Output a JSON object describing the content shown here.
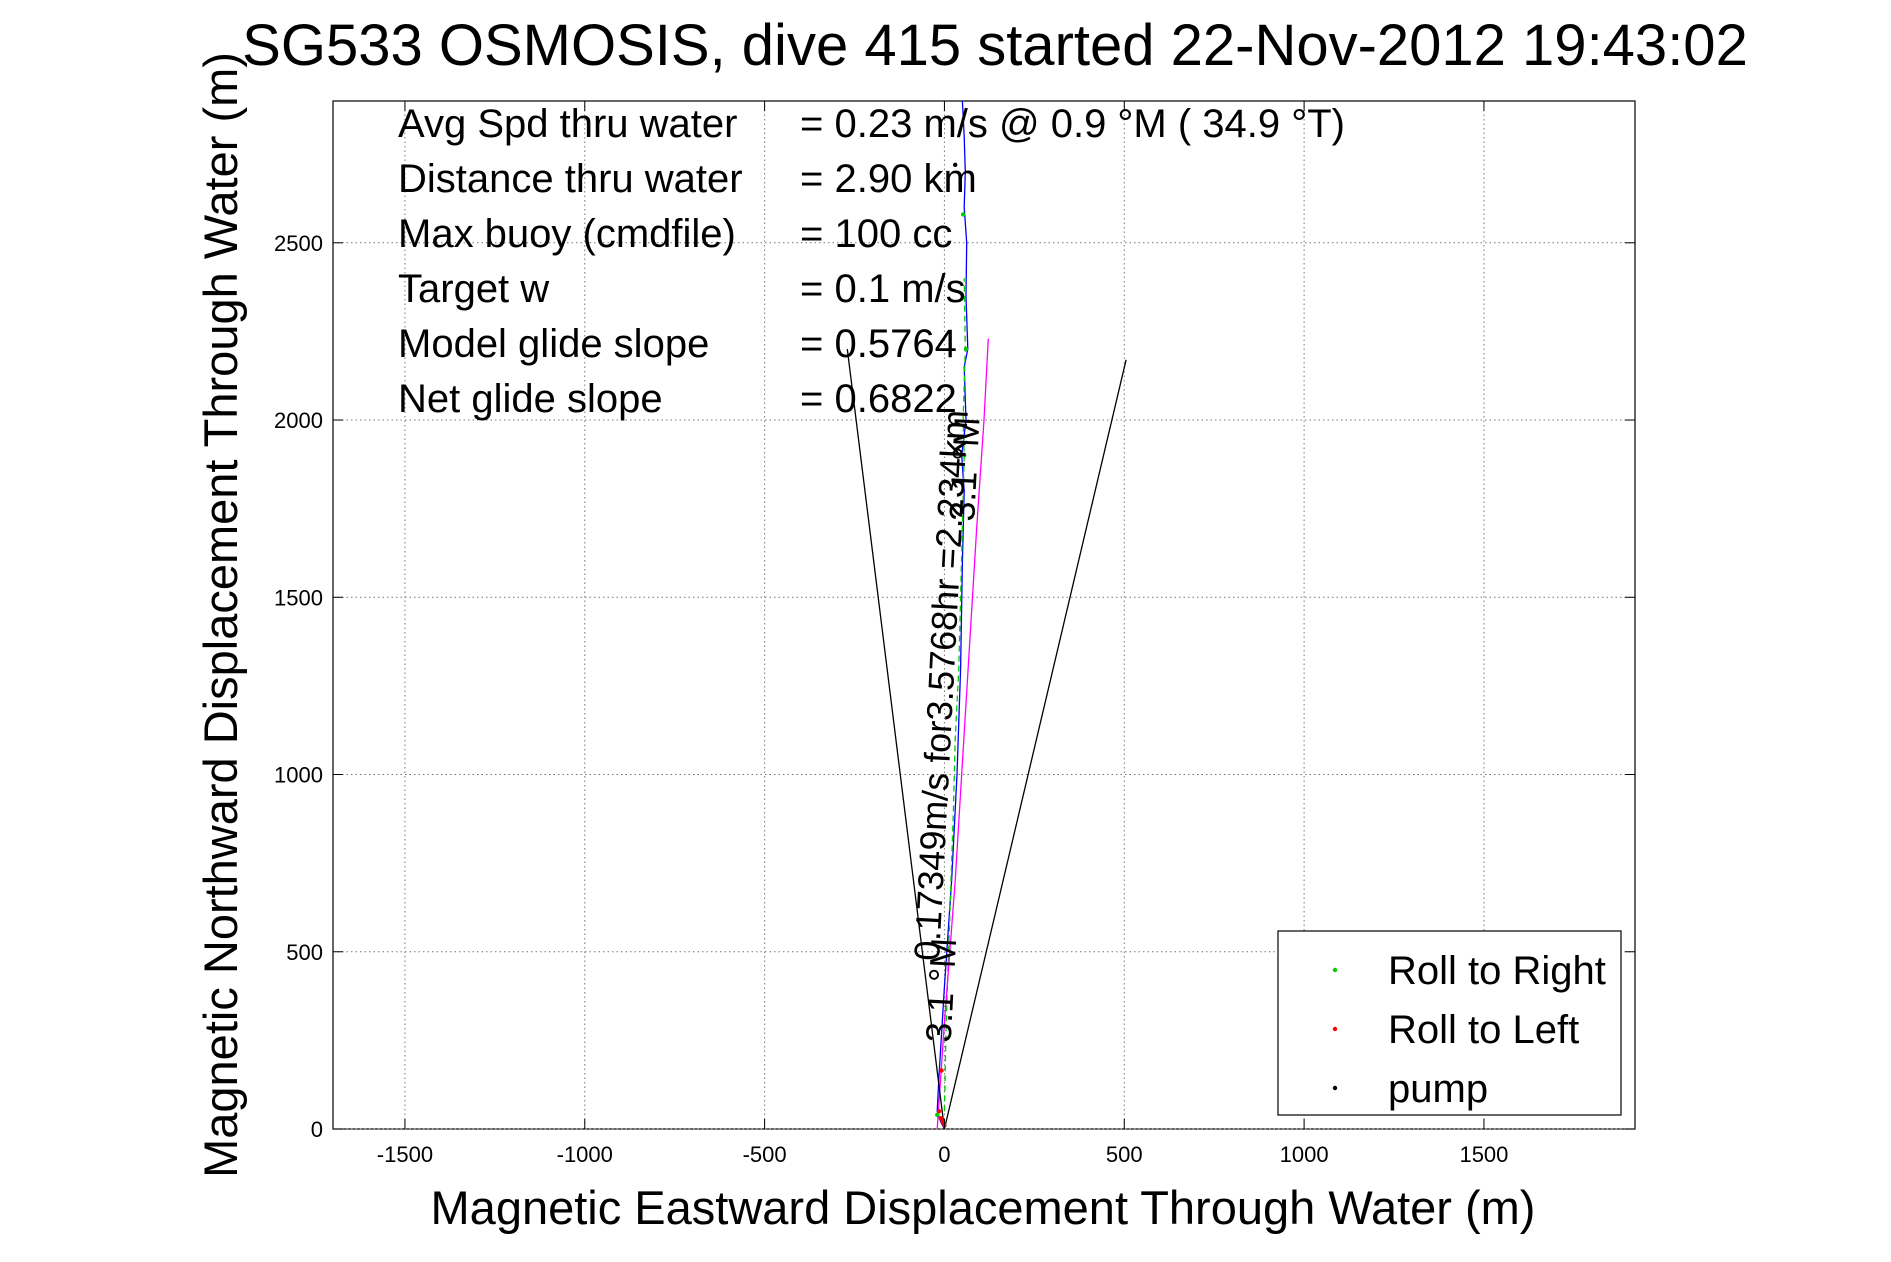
{
  "chart_data": {
    "type": "line",
    "title": "SG533 OSMOSIS, dive 415 started 22-Nov-2012 19:43:02",
    "xlabel": "Magnetic Eastward Displacement Through Water (m)",
    "ylabel": "Magnetic Northward Displacement Through Water (m)",
    "xlim": [
      -1700,
      1920
    ],
    "ylim": [
      0,
      2900
    ],
    "xticks": [
      -1500,
      -1000,
      -500,
      0,
      500,
      1000,
      1500
    ],
    "yticks": [
      0,
      500,
      1000,
      1500,
      2000,
      2500
    ],
    "grid": true,
    "legend_position": "lower-right",
    "stats": [
      {
        "label": "Avg Spd thru water",
        "value": "=  0.23 m/s @   0.9 °M ( 34.9 °T)"
      },
      {
        "label": "Distance thru water",
        "value": "=  2.90 km"
      },
      {
        "label": "Max buoy (cmdfile)",
        "value": "= 100 cc"
      },
      {
        "label": "Target w",
        "value": "= 0.1 m/s"
      },
      {
        "label": "Model glide slope",
        "value": "= 0.5764"
      },
      {
        "label": "Net glide slope",
        "value": "= 0.6822"
      }
    ],
    "legend": [
      {
        "name": "Roll to Right",
        "color": "#00cc00"
      },
      {
        "name": "Roll to Left",
        "color": "#ff0000"
      },
      {
        "name": "pump",
        "color": "#000000"
      }
    ],
    "series": [
      {
        "style": "solid",
        "color": "#0000ff",
        "x": [
          0,
          -10,
          -20,
          -15,
          0,
          20,
          35,
          45,
          50,
          55,
          48,
          60,
          55,
          65,
          60,
          62,
          55,
          58,
          55,
          50
        ],
        "y": [
          0,
          20,
          50,
          150,
          400,
          700,
          1000,
          1300,
          1600,
          1800,
          1900,
          2000,
          2150,
          2200,
          2350,
          2500,
          2600,
          2700,
          2800,
          2900
        ]
      },
      {
        "style": "dashed",
        "color": "#00cc00",
        "x": [
          0,
          5,
          15,
          25,
          30,
          40,
          45,
          50,
          55,
          52,
          58,
          55
        ],
        "y": [
          50,
          300,
          600,
          900,
          1100,
          1300,
          1500,
          1700,
          1900,
          2000,
          2200,
          2400
        ]
      },
      {
        "style": "solid",
        "color": "#ff00ff",
        "x": [
          -20,
          0,
          30,
          60,
          90,
          110,
          122
        ],
        "y": [
          0,
          300,
          700,
          1200,
          1700,
          2000,
          2230
        ]
      },
      {
        "style": "solid",
        "color": "#000000",
        "x": [
          -270,
          0,
          505
        ],
        "y": [
          2200,
          0,
          2170
        ]
      }
    ],
    "points": [
      {
        "x": -15,
        "y": 50,
        "color": "#ff0000"
      },
      {
        "x": -10,
        "y": 30,
        "color": "#ff0000"
      },
      {
        "x": 0,
        "y": 10,
        "color": "#ff0000"
      },
      {
        "x": -5,
        "y": 20,
        "color": "#ff0000"
      },
      {
        "x": -8,
        "y": 165,
        "color": "#ff0000"
      },
      {
        "x": 55,
        "y": 1900,
        "color": "#00cc00"
      },
      {
        "x": 52,
        "y": 2580,
        "color": "#00cc00"
      },
      {
        "x": 60,
        "y": 2200,
        "color": "#00cc00"
      },
      {
        "x": -20,
        "y": 40,
        "color": "#00cc00"
      },
      {
        "x": 30,
        "y": 2720,
        "color": "#000000"
      }
    ],
    "annotations": [
      {
        "text": "0.17349m/s for3.5768hr =2.234km",
        "x": 25,
        "y": 1250,
        "rotation": -87
      },
      {
        "text": "3.1 °M",
        "x": 90,
        "y": 1860,
        "rotation": -87
      },
      {
        "text": "3.1 °M",
        "x": 25,
        "y": 390,
        "rotation": -87
      }
    ]
  }
}
